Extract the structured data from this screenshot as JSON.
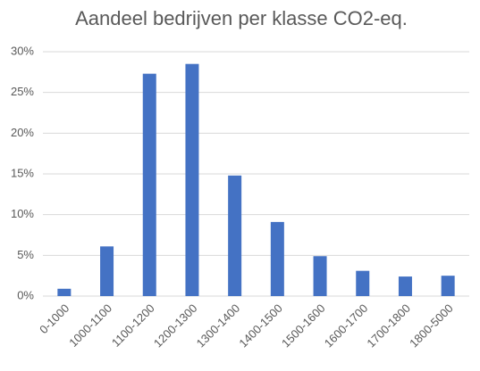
{
  "chart_data": {
    "type": "bar",
    "title": "Aandeel bedrijven per klasse CO2-eq.",
    "categories": [
      "0-1000",
      "1000-1100",
      "1100-1200",
      "1200-1300",
      "1300-1400",
      "1400-1500",
      "1500-1600",
      "1600-1700",
      "1700-1800",
      "1800-5000"
    ],
    "values": [
      0.9,
      6.1,
      27.3,
      28.5,
      14.8,
      9.1,
      4.9,
      3.1,
      2.4,
      2.5
    ],
    "color": "#4472c4",
    "ylim": [
      0,
      30
    ],
    "yticks": [
      {
        "value": 0,
        "label": "0%"
      },
      {
        "value": 5,
        "label": "5%"
      },
      {
        "value": 10,
        "label": "10%"
      },
      {
        "value": 15,
        "label": "15%"
      },
      {
        "value": 20,
        "label": "20%"
      },
      {
        "value": 25,
        "label": "25%"
      },
      {
        "value": 30,
        "label": "30%"
      }
    ],
    "grid": true
  }
}
